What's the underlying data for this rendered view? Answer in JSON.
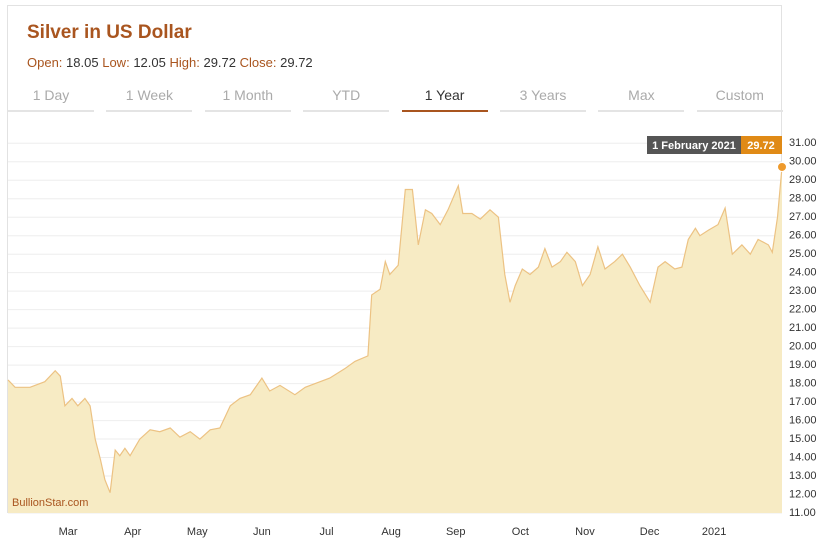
{
  "header": {
    "title": "Silver in US Dollar",
    "stats": [
      {
        "label": "Open:",
        "value": 18.05
      },
      {
        "label": "Low:",
        "value": 12.05
      },
      {
        "label": "High:",
        "value": 29.72
      },
      {
        "label": "Close:",
        "value": 29.72
      }
    ]
  },
  "tabs": [
    "1 Day",
    "1 Week",
    "1 Month",
    "YTD",
    "1 Year",
    "3 Years",
    "Max",
    "Custom"
  ],
  "active_tab": 4,
  "chart_data": {
    "type": "area",
    "x": [
      2.07,
      2.18,
      2.41,
      2.64,
      2.8,
      2.88,
      2.95,
      3.06,
      3.15,
      3.26,
      3.34,
      3.42,
      3.5,
      3.57,
      3.65,
      3.73,
      3.8,
      3.88,
      3.96,
      4.11,
      4.27,
      4.42,
      4.58,
      4.73,
      4.89,
      5.04,
      5.2,
      5.35,
      5.51,
      5.66,
      5.82,
      6.0,
      6.12,
      6.28,
      6.51,
      6.67,
      6.9,
      7.05,
      7.28,
      7.44,
      7.64,
      7.7,
      7.83,
      7.91,
      7.98,
      8.11,
      8.22,
      8.33,
      8.42,
      8.53,
      8.63,
      8.76,
      8.88,
      9.04,
      9.11,
      9.25,
      9.38,
      9.53,
      9.66,
      9.76,
      9.84,
      9.92,
      10.03,
      10.15,
      10.28,
      10.38,
      10.49,
      10.62,
      10.72,
      10.85,
      10.96,
      11.08,
      11.2,
      11.31,
      11.46,
      11.58,
      11.7,
      11.85,
      12.01,
      12.13,
      12.24,
      12.39,
      12.5,
      12.6,
      12.71,
      12.78,
      12.91,
      13.06,
      13.17,
      13.28,
      13.43,
      13.56,
      13.68,
      13.84,
      13.9,
      13.98,
      14.05
    ],
    "values": [
      18.2,
      17.8,
      17.8,
      18.1,
      18.7,
      18.4,
      16.8,
      17.2,
      16.8,
      17.2,
      16.8,
      15.0,
      13.9,
      12.8,
      12.1,
      14.4,
      14.1,
      14.5,
      14.1,
      15.0,
      15.5,
      15.4,
      15.6,
      15.1,
      15.4,
      15.0,
      15.5,
      15.6,
      16.8,
      17.2,
      17.4,
      18.3,
      17.6,
      17.9,
      17.4,
      17.8,
      18.1,
      18.3,
      18.8,
      19.2,
      19.5,
      22.8,
      23.1,
      24.6,
      23.9,
      24.4,
      28.5,
      28.5,
      25.5,
      27.4,
      27.2,
      26.6,
      27.4,
      28.7,
      27.2,
      27.2,
      26.9,
      27.4,
      27.0,
      23.9,
      22.4,
      23.3,
      24.2,
      23.9,
      24.3,
      25.3,
      24.3,
      24.6,
      25.1,
      24.6,
      23.3,
      23.9,
      25.4,
      24.2,
      24.6,
      25.0,
      24.3,
      23.3,
      22.4,
      24.3,
      24.6,
      24.2,
      24.3,
      25.8,
      26.4,
      26.0,
      26.3,
      26.6,
      27.5,
      25.0,
      25.5,
      25.0,
      25.8,
      25.5,
      25.1,
      27.0,
      29.72
    ],
    "color": "#ecc283",
    "fill": "#f7ebc4",
    "marker_color": "#ee9a2c",
    "xlim": [
      2.07,
      14.05
    ],
    "xticks": [
      {
        "value": 3,
        "label": "Mar"
      },
      {
        "value": 4,
        "label": "Apr"
      },
      {
        "value": 5,
        "label": "May"
      },
      {
        "value": 6,
        "label": "Jun"
      },
      {
        "value": 7,
        "label": "Jul"
      },
      {
        "value": 8,
        "label": "Aug"
      },
      {
        "value": 9,
        "label": "Sep"
      },
      {
        "value": 10,
        "label": "Oct"
      },
      {
        "value": 11,
        "label": "Nov"
      },
      {
        "value": 12,
        "label": "Dec"
      },
      {
        "value": 13,
        "label": "2021"
      }
    ],
    "ylim": [
      11,
      32.8
    ],
    "yticks": [
      {
        "value": 11,
        "label": "11.00"
      },
      {
        "value": 12,
        "label": "12.00"
      },
      {
        "value": 13,
        "label": "13.00"
      },
      {
        "value": 14,
        "label": "14.00"
      },
      {
        "value": 15,
        "label": "15.00"
      },
      {
        "value": 16,
        "label": "16.00"
      },
      {
        "value": 17,
        "label": "17.00"
      },
      {
        "value": 18,
        "label": "18.00"
      },
      {
        "value": 19,
        "label": "19.00"
      },
      {
        "value": 20,
        "label": "20.00"
      },
      {
        "value": 21,
        "label": "21.00"
      },
      {
        "value": 22,
        "label": "22.00"
      },
      {
        "value": 23,
        "label": "23.00"
      },
      {
        "value": 24,
        "label": "24.00"
      },
      {
        "value": 25,
        "label": "25.00"
      },
      {
        "value": 26,
        "label": "26.00"
      },
      {
        "value": 27,
        "label": "27.00"
      },
      {
        "value": 28,
        "label": "28.00"
      },
      {
        "value": 29,
        "label": "29.00"
      },
      {
        "value": 30,
        "label": "30.00"
      },
      {
        "value": 31,
        "label": "31.00"
      }
    ],
    "grid": true,
    "watermark": "BullionStar.com",
    "tooltip_date": "1 February 2021"
  }
}
